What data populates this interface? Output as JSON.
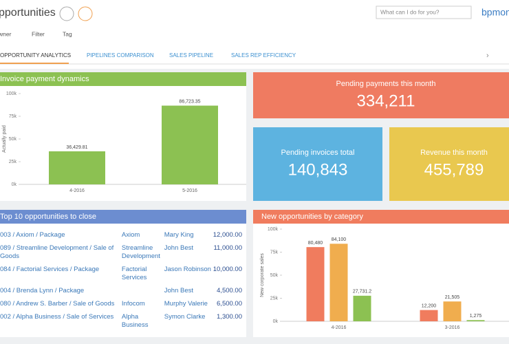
{
  "header": {
    "title": "pportunities",
    "search_placeholder": "What can I do for you?",
    "logo": "bpmon"
  },
  "toolbar": {
    "owner": "wner",
    "filter": "Filter",
    "tag": "Tag"
  },
  "tabs": [
    "OPPORTUNITY ANALYTICS",
    "PIPELINES COMPARISON",
    "SALES PIPELINE",
    "SALES REP EFFICIENCY"
  ],
  "metrics": [
    {
      "title": "Pending payments this month",
      "value": "334,211"
    },
    {
      "title": "Pending invoices total",
      "value": "140,843"
    },
    {
      "title": "Revenue this month",
      "value": "455,789"
    }
  ],
  "table": {
    "title": "Top 10 opportunities to close",
    "rows": [
      [
        "003 / Axiom / Package",
        "Axiom",
        "Mary King",
        "12,000.00"
      ],
      [
        "089 / Streamline Development / Sale of Goods",
        "Streamline Development",
        "John Best",
        "11,000.00"
      ],
      [
        "084 / Factorial Services / Package",
        "Factorial Services",
        "Jason Robinson",
        "10,000.00"
      ],
      [
        "004 / Brenda Lynn / Package",
        null,
        "John Best",
        "4,500.00"
      ],
      [
        "080 / Andrew S. Barber / Sale of Goods",
        "Infocom",
        "Murphy Valerie",
        "6,500.00"
      ],
      [
        "002 / Alpha Business / Sale of Services",
        "Alpha Business",
        "Symon Clarke",
        "1,300.00"
      ]
    ]
  },
  "chart_data": [
    {
      "type": "bar",
      "title": "Invoice payment dynamics",
      "y_label": "Actually paid",
      "categories": [
        "4-2016",
        "5-2016"
      ],
      "values": [
        36429.81,
        86723.35
      ],
      "value_labels": [
        "36,429.81",
        "86,723.35"
      ],
      "color": "#8cc152",
      "ylim": [
        0,
        100000
      ],
      "yticks": [
        {
          "value": 0,
          "label": "0k"
        },
        {
          "value": 25000,
          "label": "25k"
        },
        {
          "value": 50000,
          "label": "50k"
        },
        {
          "value": 75000,
          "label": "75k"
        },
        {
          "value": 100000,
          "label": "100k"
        }
      ]
    },
    {
      "type": "bar",
      "title": "New opportunities by category",
      "y_label": "New corporate sales",
      "categories": [
        "4-2016",
        "3-2016"
      ],
      "series": [
        {
          "color": "#f07c5e",
          "values": [
            80480,
            12200
          ],
          "value_labels": [
            "80,480",
            "12,200"
          ]
        },
        {
          "color": "#f0ad4e",
          "values": [
            84100,
            21505
          ],
          "value_labels": [
            "84,100",
            "21,505"
          ]
        },
        {
          "color": "#8cc152",
          "values": [
            27731.2,
            1275
          ],
          "value_labels": [
            "27,731.2",
            "1,275"
          ]
        }
      ],
      "ylim": [
        0,
        100000
      ],
      "yticks": [
        {
          "value": 0,
          "label": "0k"
        },
        {
          "value": 25000,
          "label": "25k"
        },
        {
          "value": 50000,
          "label": "50k"
        },
        {
          "value": 75000,
          "label": "75k"
        },
        {
          "value": 100000,
          "label": "100k"
        }
      ]
    }
  ]
}
